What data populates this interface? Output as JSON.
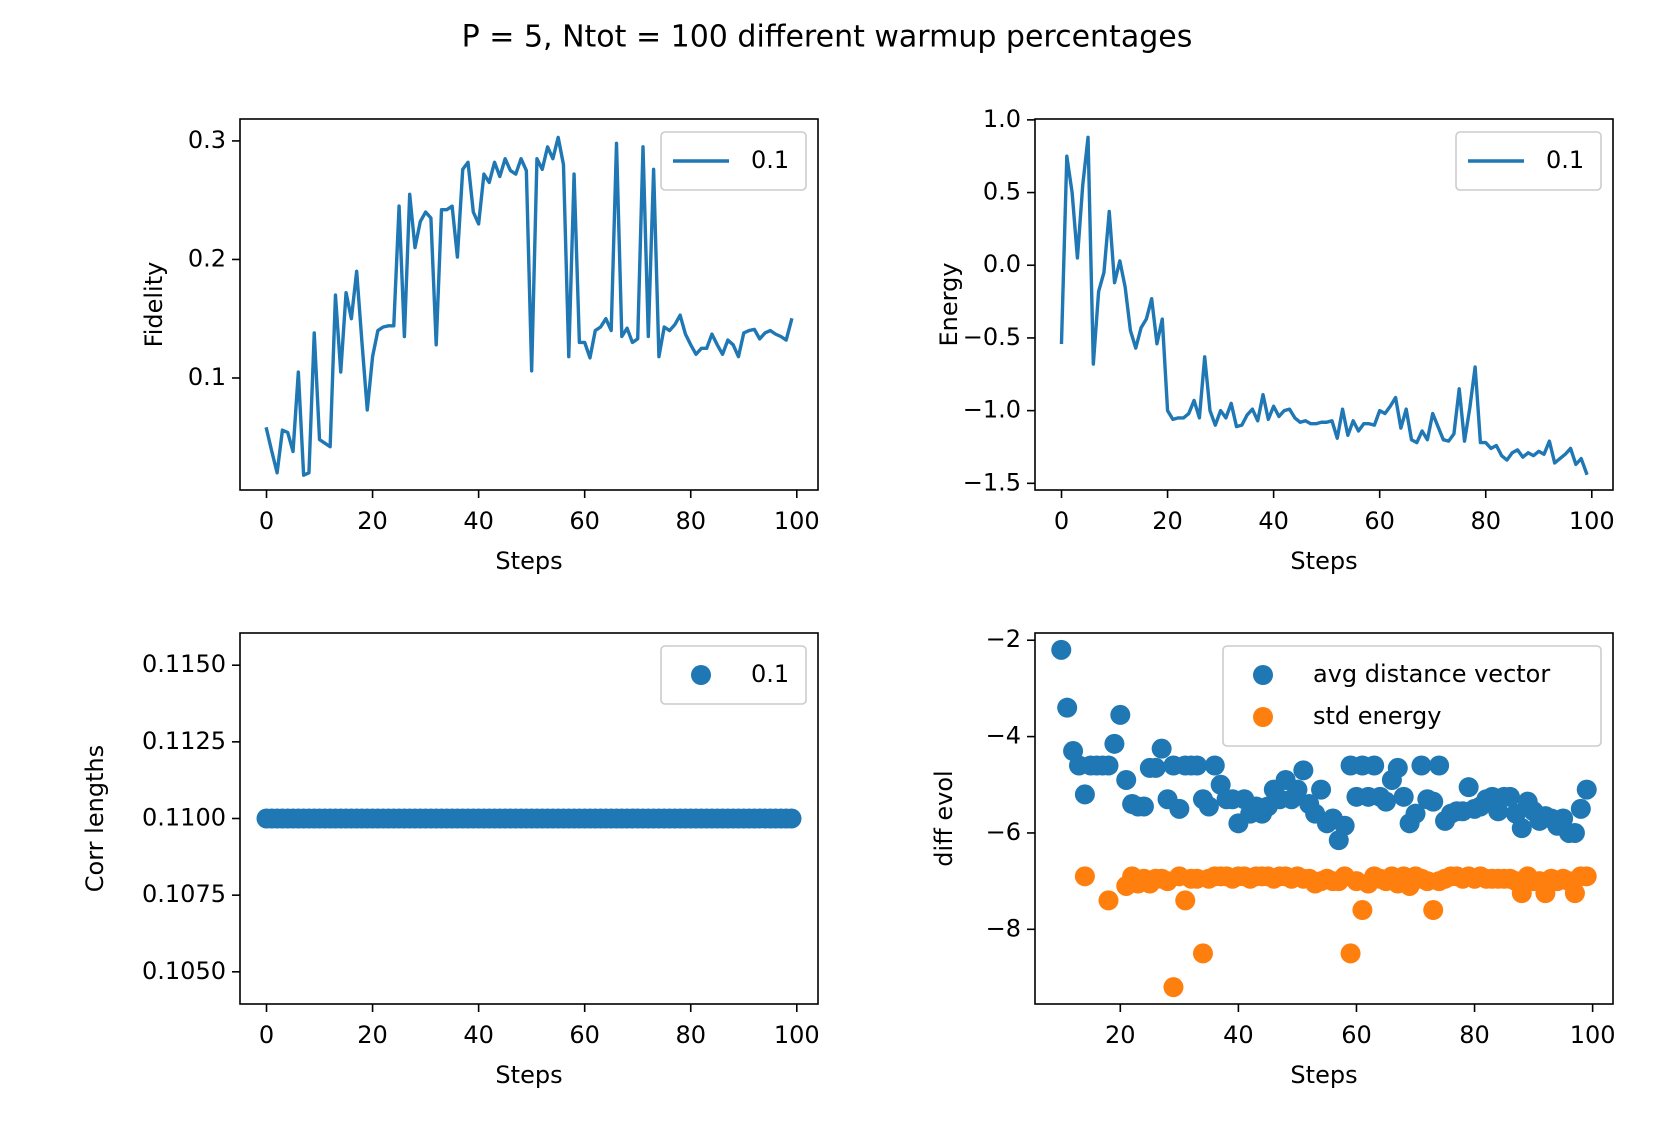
{
  "suptitle": "P = 5, Ntot = 100 different warmup percentages",
  "colors": {
    "blue": "#1f77b4",
    "orange": "#ff7f0e"
  },
  "chart_data": [
    {
      "id": "fidelity",
      "type": "line",
      "title": "",
      "xlabel": "Steps",
      "ylabel": "Fidelity",
      "xlim": [
        -5,
        104
      ],
      "ylim": [
        0.0055,
        0.3185
      ],
      "xticks": [
        0,
        20,
        40,
        60,
        80,
        100
      ],
      "yticks": [
        0.1,
        0.2,
        0.3
      ],
      "legend": {
        "position": "top-right",
        "entries": [
          "0.1"
        ]
      },
      "series": [
        {
          "name": "0.1",
          "color": "#1f77b4",
          "x": [
            0,
            1,
            2,
            3,
            4,
            5,
            6,
            7,
            8,
            9,
            10,
            11,
            12,
            13,
            14,
            15,
            16,
            17,
            18,
            19,
            20,
            21,
            22,
            23,
            24,
            25,
            26,
            27,
            28,
            29,
            30,
            31,
            32,
            33,
            34,
            35,
            36,
            37,
            38,
            39,
            40,
            41,
            42,
            43,
            44,
            45,
            46,
            47,
            48,
            49,
            50,
            51,
            52,
            53,
            54,
            55,
            56,
            57,
            58,
            59,
            60,
            61,
            62,
            63,
            64,
            65,
            66,
            67,
            68,
            69,
            70,
            71,
            72,
            73,
            74,
            75,
            76,
            77,
            78,
            79,
            80,
            81,
            82,
            83,
            84,
            85,
            86,
            87,
            88,
            89,
            90,
            91,
            92,
            93,
            94,
            95,
            96,
            97,
            98,
            99
          ],
          "y": [
            0.057,
            0.038,
            0.02,
            0.056,
            0.054,
            0.038,
            0.105,
            0.018,
            0.02,
            0.138,
            0.048,
            0.045,
            0.042,
            0.17,
            0.105,
            0.172,
            0.15,
            0.19,
            0.13,
            0.073,
            0.118,
            0.14,
            0.143,
            0.144,
            0.144,
            0.245,
            0.135,
            0.255,
            0.21,
            0.232,
            0.24,
            0.235,
            0.128,
            0.242,
            0.242,
            0.245,
            0.202,
            0.276,
            0.282,
            0.24,
            0.23,
            0.272,
            0.265,
            0.282,
            0.27,
            0.285,
            0.275,
            0.272,
            0.285,
            0.275,
            0.106,
            0.285,
            0.276,
            0.295,
            0.285,
            0.303,
            0.28,
            0.118,
            0.272,
            0.13,
            0.13,
            0.117,
            0.14,
            0.143,
            0.15,
            0.14,
            0.298,
            0.135,
            0.142,
            0.13,
            0.133,
            0.295,
            0.135,
            0.276,
            0.118,
            0.143,
            0.14,
            0.145,
            0.153,
            0.137,
            0.128,
            0.12,
            0.125,
            0.125,
            0.137,
            0.128,
            0.12,
            0.132,
            0.128,
            0.118,
            0.138,
            0.14,
            0.141,
            0.133,
            0.138,
            0.14,
            0.137,
            0.135,
            0.132,
            0.149
          ]
        }
      ]
    },
    {
      "id": "energy",
      "type": "line",
      "title": "",
      "xlabel": "Steps",
      "ylabel": "Energy",
      "xlim": [
        -5,
        104
      ],
      "ylim": [
        -1.546,
        1.006
      ],
      "xticks": [
        0,
        20,
        40,
        60,
        80,
        100
      ],
      "yticks": [
        1.0,
        0.5,
        0.0,
        -0.5,
        -1.0,
        -1.5
      ],
      "ytick_labels": [
        "1.0",
        "0.5",
        "0.0",
        "−0.5",
        "−1.0",
        "−1.5"
      ],
      "legend": {
        "position": "top-right",
        "entries": [
          "0.1"
        ]
      },
      "series": [
        {
          "name": "0.1",
          "color": "#1f77b4",
          "x": [
            0,
            1,
            2,
            3,
            4,
            5,
            6,
            7,
            8,
            9,
            10,
            11,
            12,
            13,
            14,
            15,
            16,
            17,
            18,
            19,
            20,
            21,
            22,
            23,
            24,
            25,
            26,
            27,
            28,
            29,
            30,
            31,
            32,
            33,
            34,
            35,
            36,
            37,
            38,
            39,
            40,
            41,
            42,
            43,
            44,
            45,
            46,
            47,
            48,
            49,
            50,
            51,
            52,
            53,
            54,
            55,
            56,
            57,
            58,
            59,
            60,
            61,
            62,
            63,
            64,
            65,
            66,
            67,
            68,
            69,
            70,
            71,
            72,
            73,
            74,
            75,
            76,
            77,
            78,
            79,
            80,
            81,
            82,
            83,
            84,
            85,
            86,
            87,
            88,
            89,
            90,
            91,
            92,
            93,
            94,
            95,
            96,
            97,
            98,
            99
          ],
          "y": [
            -0.53,
            0.75,
            0.5,
            0.05,
            0.55,
            0.88,
            -0.68,
            -0.18,
            -0.05,
            0.37,
            -0.12,
            0.03,
            -0.15,
            -0.45,
            -0.57,
            -0.43,
            -0.37,
            -0.23,
            -0.54,
            -0.37,
            -1.0,
            -1.06,
            -1.05,
            -1.05,
            -1.02,
            -0.93,
            -1.05,
            -0.63,
            -1.0,
            -1.1,
            -1.0,
            -1.05,
            -0.95,
            -1.11,
            -1.1,
            -1.03,
            -0.99,
            -1.07,
            -0.89,
            -1.06,
            -0.97,
            -1.04,
            -1.0,
            -0.99,
            -1.05,
            -1.08,
            -1.07,
            -1.09,
            -1.09,
            -1.08,
            -1.08,
            -1.07,
            -1.19,
            -0.99,
            -1.17,
            -1.07,
            -1.14,
            -1.09,
            -1.09,
            -1.1,
            -1.0,
            -1.02,
            -0.97,
            -0.91,
            -1.12,
            -0.99,
            -1.2,
            -1.22,
            -1.14,
            -1.2,
            -1.02,
            -1.11,
            -1.2,
            -1.21,
            -1.16,
            -0.85,
            -1.21,
            -0.98,
            -0.7,
            -1.22,
            -1.22,
            -1.26,
            -1.24,
            -1.31,
            -1.34,
            -1.29,
            -1.27,
            -1.32,
            -1.29,
            -1.31,
            -1.28,
            -1.3,
            -1.21,
            -1.36,
            -1.33,
            -1.3,
            -1.26,
            -1.37,
            -1.33,
            -1.43
          ]
        }
      ]
    },
    {
      "id": "corr",
      "type": "scatter",
      "title": "",
      "xlabel": "Steps",
      "ylabel": "Corr lengths",
      "xlim": [
        -5,
        104
      ],
      "ylim": [
        0.10395,
        0.11605
      ],
      "xticks": [
        0,
        20,
        40,
        60,
        80,
        100
      ],
      "yticks": [
        0.115,
        0.1125,
        0.11,
        0.1075,
        0.105
      ],
      "ytick_labels": [
        "0.1150",
        "0.1125",
        "0.1100",
        "0.1075",
        "0.1050"
      ],
      "legend": {
        "position": "top-right",
        "entries": [
          "0.1"
        ]
      },
      "series": [
        {
          "name": "0.1",
          "color": "#1f77b4",
          "x": [
            0,
            1,
            2,
            3,
            4,
            5,
            6,
            7,
            8,
            9,
            10,
            11,
            12,
            13,
            14,
            15,
            16,
            17,
            18,
            19,
            20,
            21,
            22,
            23,
            24,
            25,
            26,
            27,
            28,
            29,
            30,
            31,
            32,
            33,
            34,
            35,
            36,
            37,
            38,
            39,
            40,
            41,
            42,
            43,
            44,
            45,
            46,
            47,
            48,
            49,
            50,
            51,
            52,
            53,
            54,
            55,
            56,
            57,
            58,
            59,
            60,
            61,
            62,
            63,
            64,
            65,
            66,
            67,
            68,
            69,
            70,
            71,
            72,
            73,
            74,
            75,
            76,
            77,
            78,
            79,
            80,
            81,
            82,
            83,
            84,
            85,
            86,
            87,
            88,
            89,
            90,
            91,
            92,
            93,
            94,
            95,
            96,
            97,
            98,
            99
          ],
          "y": [
            0.11,
            0.11,
            0.11,
            0.11,
            0.11,
            0.11,
            0.11,
            0.11,
            0.11,
            0.11,
            0.11,
            0.11,
            0.11,
            0.11,
            0.11,
            0.11,
            0.11,
            0.11,
            0.11,
            0.11,
            0.11,
            0.11,
            0.11,
            0.11,
            0.11,
            0.11,
            0.11,
            0.11,
            0.11,
            0.11,
            0.11,
            0.11,
            0.11,
            0.11,
            0.11,
            0.11,
            0.11,
            0.11,
            0.11,
            0.11,
            0.11,
            0.11,
            0.11,
            0.11,
            0.11,
            0.11,
            0.11,
            0.11,
            0.11,
            0.11,
            0.11,
            0.11,
            0.11,
            0.11,
            0.11,
            0.11,
            0.11,
            0.11,
            0.11,
            0.11,
            0.11,
            0.11,
            0.11,
            0.11,
            0.11,
            0.11,
            0.11,
            0.11,
            0.11,
            0.11,
            0.11,
            0.11,
            0.11,
            0.11,
            0.11,
            0.11,
            0.11,
            0.11,
            0.11,
            0.11,
            0.11,
            0.11,
            0.11,
            0.11,
            0.11,
            0.11,
            0.11,
            0.11,
            0.11,
            0.11,
            0.11,
            0.11,
            0.11,
            0.11,
            0.11,
            0.11,
            0.11,
            0.11,
            0.11,
            0.11
          ]
        }
      ]
    },
    {
      "id": "diff",
      "type": "scatter",
      "title": "",
      "xlabel": "Steps",
      "ylabel": "diff evol",
      "xlim": [
        5.55,
        103.45
      ],
      "ylim": [
        -9.55,
        -1.85
      ],
      "xticks": [
        20,
        40,
        60,
        80,
        100
      ],
      "yticks": [
        -2,
        -4,
        -6,
        -8
      ],
      "ytick_labels": [
        "−2",
        "−4",
        "−6",
        "−8"
      ],
      "legend": {
        "position": "top-right",
        "entries": [
          "avg distance vector",
          "std energy"
        ]
      },
      "series": [
        {
          "name": "avg distance vector",
          "color": "#1f77b4",
          "x": [
            10,
            11,
            12,
            13,
            14,
            15,
            16,
            17,
            18,
            19,
            20,
            21,
            22,
            23,
            24,
            25,
            26,
            27,
            28,
            29,
            30,
            31,
            32,
            33,
            34,
            35,
            36,
            37,
            38,
            39,
            40,
            41,
            42,
            43,
            44,
            45,
            46,
            47,
            48,
            49,
            50,
            51,
            52,
            53,
            54,
            55,
            56,
            57,
            58,
            59,
            60,
            61,
            62,
            63,
            64,
            65,
            66,
            67,
            68,
            69,
            70,
            71,
            72,
            73,
            74,
            75,
            76,
            77,
            78,
            79,
            80,
            81,
            82,
            83,
            84,
            85,
            86,
            87,
            88,
            89,
            90,
            91,
            92,
            93,
            94,
            95,
            96,
            97,
            98,
            99
          ],
          "y": [
            -2.2,
            -3.4,
            -4.3,
            -4.6,
            -5.2,
            -4.6,
            -4.6,
            -4.6,
            -4.6,
            -4.15,
            -3.55,
            -4.9,
            -5.4,
            -5.45,
            -5.45,
            -4.65,
            -4.65,
            -4.25,
            -5.3,
            -4.6,
            -5.5,
            -4.6,
            -4.6,
            -4.6,
            -5.3,
            -5.45,
            -4.6,
            -5.0,
            -5.3,
            -5.3,
            -5.8,
            -5.3,
            -5.6,
            -5.45,
            -5.6,
            -5.45,
            -5.1,
            -5.3,
            -4.9,
            -5.3,
            -5.1,
            -4.7,
            -5.4,
            -5.6,
            -5.1,
            -5.8,
            -5.7,
            -6.15,
            -5.85,
            -4.6,
            -5.25,
            -4.6,
            -5.25,
            -4.6,
            -5.25,
            -5.35,
            -4.9,
            -4.65,
            -5.25,
            -5.8,
            -5.6,
            -4.6,
            -5.3,
            -5.35,
            -4.6,
            -5.75,
            -5.6,
            -5.55,
            -5.55,
            -5.05,
            -5.5,
            -5.45,
            -5.3,
            -5.25,
            -5.55,
            -5.25,
            -5.25,
            -5.6,
            -5.9,
            -5.35,
            -5.55,
            -5.75,
            -5.65,
            -5.7,
            -5.85,
            -5.7,
            -6.0,
            -6.0,
            -5.5,
            -5.1
          ]
        },
        {
          "name": "std energy",
          "color": "#ff7f0e",
          "x": [
            14,
            18,
            21,
            22,
            23,
            24,
            25,
            26,
            27,
            28,
            29,
            30,
            31,
            32,
            33,
            34,
            35,
            36,
            37,
            38,
            39,
            40,
            41,
            42,
            43,
            44,
            45,
            46,
            47,
            48,
            49,
            50,
            51,
            52,
            53,
            54,
            55,
            56,
            57,
            58,
            59,
            60,
            61,
            62,
            63,
            64,
            65,
            66,
            67,
            68,
            69,
            70,
            71,
            72,
            73,
            74,
            75,
            76,
            77,
            78,
            79,
            80,
            81,
            82,
            83,
            84,
            85,
            86,
            87,
            88,
            89,
            90,
            91,
            92,
            93,
            94,
            95,
            96,
            97,
            98,
            99
          ],
          "y": [
            -6.9,
            -7.4,
            -7.1,
            -6.9,
            -7.05,
            -6.95,
            -7.05,
            -6.95,
            -6.95,
            -7.0,
            -9.2,
            -6.9,
            -7.4,
            -6.95,
            -6.95,
            -8.5,
            -6.95,
            -6.9,
            -6.9,
            -6.9,
            -6.95,
            -6.9,
            -6.9,
            -6.95,
            -6.9,
            -6.9,
            -6.9,
            -6.95,
            -6.9,
            -6.9,
            -6.95,
            -6.9,
            -6.95,
            -6.95,
            -7.05,
            -7.0,
            -6.95,
            -7.0,
            -7.0,
            -6.9,
            -8.5,
            -7.0,
            -7.6,
            -7.05,
            -6.9,
            -6.95,
            -7.0,
            -6.9,
            -7.05,
            -6.9,
            -7.1,
            -6.9,
            -6.95,
            -7.0,
            -7.6,
            -7.0,
            -6.95,
            -6.9,
            -6.9,
            -6.95,
            -6.9,
            -6.95,
            -6.9,
            -6.95,
            -6.95,
            -6.95,
            -6.95,
            -6.95,
            -7.0,
            -7.25,
            -6.9,
            -7.0,
            -7.0,
            -7.25,
            -6.95,
            -7.0,
            -6.95,
            -7.0,
            -7.25,
            -6.9,
            -6.9
          ]
        }
      ]
    }
  ]
}
